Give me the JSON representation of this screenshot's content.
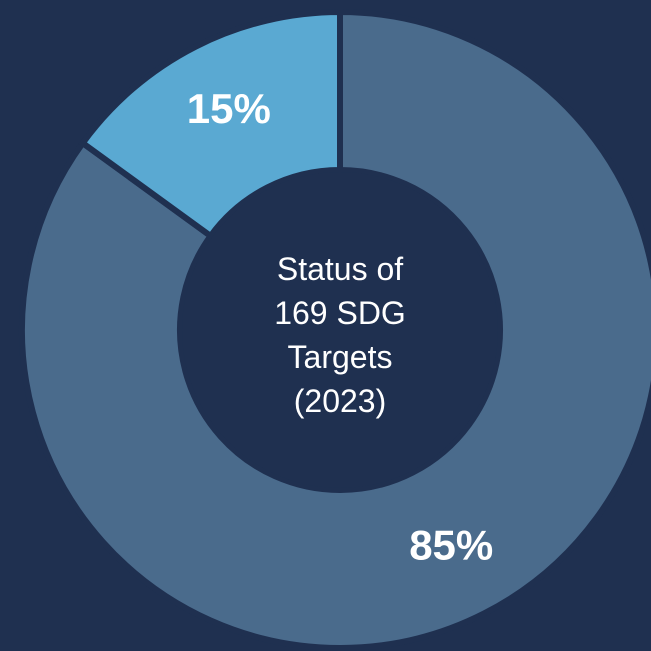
{
  "chart_data": {
    "type": "pie",
    "title": "Status of 169 SDG Targets (2023)",
    "values": [
      85,
      15
    ],
    "value_labels": [
      "85%",
      "15%"
    ],
    "colors": [
      "#4a6b8c",
      "#5aa9d2"
    ]
  }
}
